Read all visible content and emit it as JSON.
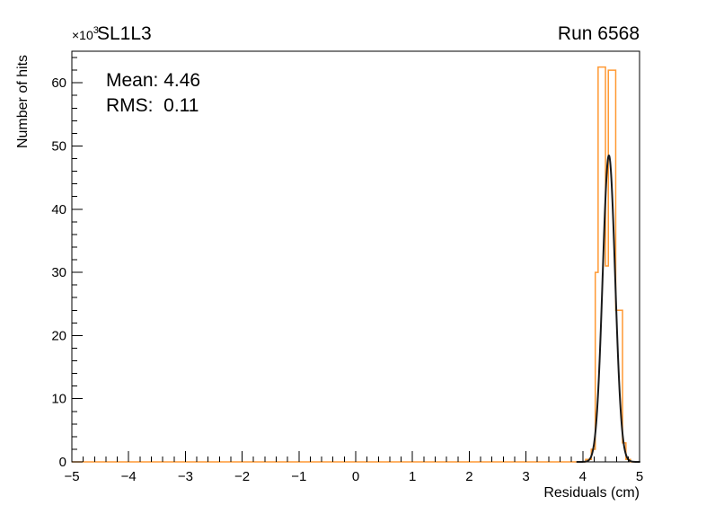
{
  "header": {
    "multiplier_base": "×10",
    "multiplier_exp": "3",
    "title": "SL1L3",
    "run_label": "Run 6568"
  },
  "stats": {
    "mean_text": "Mean: 4.46",
    "rms_text": "RMS:  0.11"
  },
  "chart_data": {
    "type": "bar",
    "subtype": "histogram-with-gaussian-fit",
    "title": "SL1L3",
    "run": "Run 6568",
    "xlabel": "Residuals (cm)",
    "ylabel": "Number of hits",
    "y_unit_multiplier": "×10³",
    "xlim": [
      -5,
      5
    ],
    "ylim": [
      0,
      65
    ],
    "grid": false,
    "x_major_ticks": [
      -5,
      -4,
      -3,
      -2,
      -1,
      0,
      1,
      2,
      3,
      4,
      5
    ],
    "x_tick_labels": [
      "−5",
      "−4",
      "−3",
      "−2",
      "−1",
      "0",
      "1",
      "2",
      "3",
      "4",
      "5"
    ],
    "x_minor_step": 0.2,
    "y_major_ticks": [
      0,
      10,
      20,
      30,
      40,
      50,
      60
    ],
    "y_tick_labels": [
      "0",
      "10",
      "20",
      "30",
      "40",
      "50",
      "60"
    ],
    "y_minor_step": 2,
    "stats": {
      "mean": 4.46,
      "rms": 0.11
    },
    "histogram": {
      "color": "#ff9933",
      "line_width": 1.5,
      "bins_x103": [
        [
          4.05,
          4.15,
          0.4
        ],
        [
          4.15,
          4.22,
          2.0
        ],
        [
          4.22,
          4.27,
          30.0
        ],
        [
          4.27,
          4.4,
          62.5
        ],
        [
          4.4,
          4.45,
          31.0
        ],
        [
          4.45,
          4.58,
          62.0
        ],
        [
          4.58,
          4.7,
          24.0
        ],
        [
          4.7,
          4.76,
          3.0
        ],
        [
          4.76,
          4.84,
          0.4
        ]
      ]
    },
    "fit": {
      "shape": "gaussian",
      "color": "#1a1a1a",
      "line_width": 2,
      "amplitude_x103": 48.5,
      "mean": 4.46,
      "sigma": 0.11,
      "x_range": [
        3.9,
        5.0
      ]
    }
  }
}
